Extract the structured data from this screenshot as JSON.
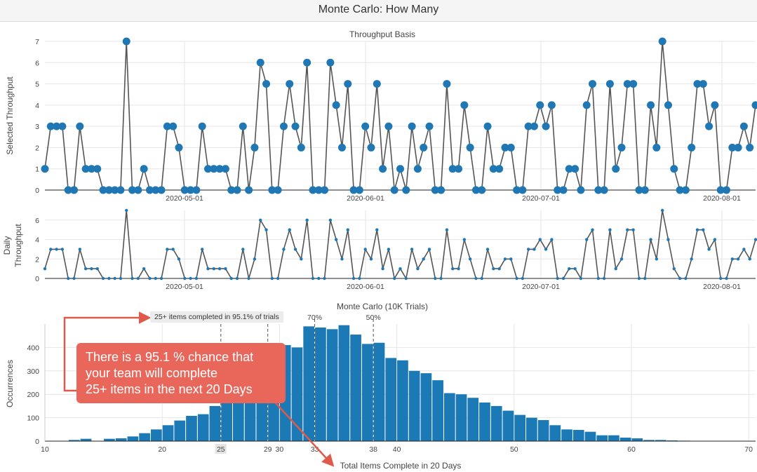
{
  "window": {
    "title": "Monte Carlo: How Many"
  },
  "colors": {
    "accent": "#1f77b4",
    "bar": "#1b79b6",
    "line": "#555555",
    "callout": "#e8675a",
    "arrow": "#e05a4b"
  },
  "top_chart": {
    "title": "Throughput Basis",
    "ylabel": "Selected Throughput"
  },
  "mid_chart": {
    "ylabel_line1": "Daily",
    "ylabel_line2": "Throughput"
  },
  "bottom_chart": {
    "title": "Monte Carlo (10K Trials)",
    "ylabel": "Occurrences",
    "xlabel": "Total Items Complete in 20 Days",
    "annotation": "25+ items completed in 95.1% of trials",
    "marker_labels": [
      "70%",
      "50%"
    ]
  },
  "callout": {
    "line1": "There is a 95.1 % chance that",
    "line2": "your team will complete",
    "line3": "25+ items in the next 20 Days"
  },
  "chart_data": [
    {
      "type": "line",
      "title": "Throughput Basis",
      "ylabel": "Selected Throughput",
      "x_tick_labels": [
        "2020-05-01",
        "2020-06-01",
        "2020-07-01",
        "2020-08-01"
      ],
      "ylim": [
        0,
        7
      ],
      "y_ticks": [
        0,
        1,
        2,
        3,
        4,
        5,
        6,
        7
      ],
      "values": [
        1,
        3,
        3,
        3,
        0,
        0,
        3,
        1,
        1,
        1,
        0,
        0,
        0,
        0,
        7,
        0,
        0,
        1,
        0,
        0,
        0,
        3,
        3,
        2,
        0,
        0,
        0,
        3,
        1,
        1,
        1,
        1,
        0,
        0,
        3,
        0,
        2,
        6,
        5,
        0,
        0,
        3,
        5,
        3,
        2,
        6,
        0,
        0,
        0,
        6,
        4,
        2,
        5,
        0,
        0,
        3,
        2,
        5,
        1,
        3,
        0,
        1,
        0,
        3,
        1,
        2,
        3,
        0,
        0,
        5,
        1,
        1,
        4,
        2,
        0,
        0,
        3,
        1,
        1,
        2,
        2,
        0,
        0,
        3,
        3,
        4,
        3,
        4,
        0,
        0,
        1,
        1,
        0,
        4,
        5,
        0,
        0,
        5,
        1,
        2,
        5,
        5,
        0,
        0,
        4,
        2,
        7,
        4,
        1,
        0,
        0,
        2,
        5,
        5,
        3,
        4,
        0,
        0,
        2,
        2,
        3,
        2,
        4
      ]
    },
    {
      "type": "line",
      "ylabel": "Daily Throughput",
      "x_tick_labels": [
        "2020-05-01",
        "2020-06-01",
        "2020-07-01",
        "2020-08-01"
      ],
      "ylim": [
        0,
        7
      ],
      "y_ticks": [
        0,
        2,
        4,
        6
      ],
      "values": "same as Throughput Basis"
    },
    {
      "type": "bar",
      "title": "Monte Carlo (10K Trials)",
      "xlabel": "Total Items Complete in 20 Days",
      "ylabel": "Occurrences",
      "x_start": 12,
      "values": [
        5,
        10,
        0,
        10,
        12,
        20,
        34,
        50,
        68,
        88,
        108,
        115,
        150,
        222,
        290,
        330,
        350,
        368,
        410,
        400,
        490,
        485,
        478,
        495,
        455,
        415,
        420,
        355,
        345,
        300,
        290,
        260,
        205,
        200,
        185,
        165,
        150,
        130,
        112,
        100,
        90,
        68,
        50,
        48,
        40,
        25,
        25,
        15,
        12,
        5,
        5,
        3,
        2
      ],
      "x_ticks": [
        10,
        20,
        25,
        29,
        30,
        33,
        38,
        40,
        50,
        60,
        70
      ],
      "xlim": [
        10,
        71
      ],
      "ylim": [
        0,
        500
      ],
      "y_ticks": [
        0,
        100,
        200,
        300,
        400
      ],
      "markers": [
        {
          "x": 25,
          "label": "95.1%"
        },
        {
          "x": 29,
          "label": ""
        },
        {
          "x": 33,
          "label": "70%"
        },
        {
          "x": 38,
          "label": "50%"
        }
      ]
    }
  ]
}
